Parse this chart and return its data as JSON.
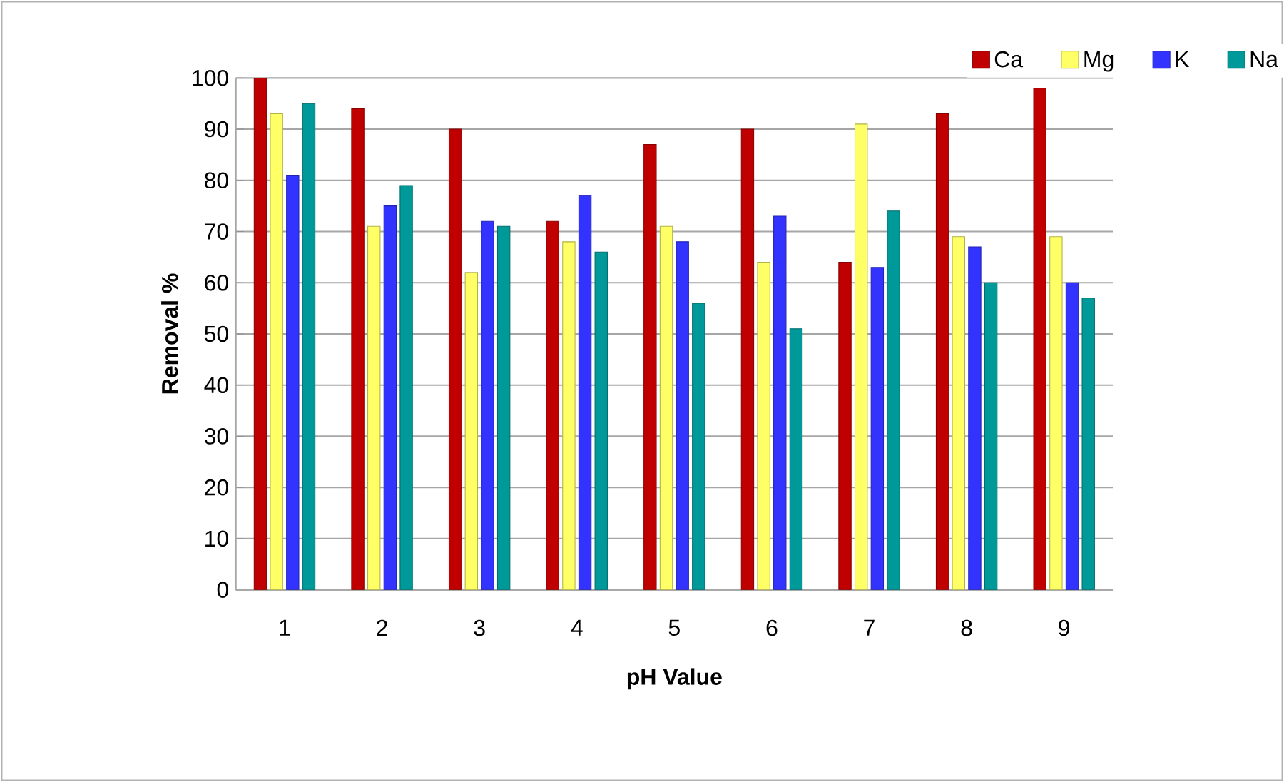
{
  "chart_data": {
    "type": "bar",
    "xlabel": "pH Value",
    "ylabel": "Removal %",
    "categories": [
      "1",
      "2",
      "3",
      "4",
      "5",
      "6",
      "7",
      "8",
      "9"
    ],
    "series": [
      {
        "name": "Ca",
        "color": "#c00000",
        "values": [
          100,
          94,
          90,
          72,
          87,
          90,
          64,
          93,
          98
        ]
      },
      {
        "name": "Mg",
        "color": "#ffff66",
        "values": [
          93,
          71,
          62,
          68,
          71,
          64,
          91,
          69,
          69
        ]
      },
      {
        "name": "K",
        "color": "#3333ff",
        "values": [
          81,
          75,
          72,
          77,
          68,
          73,
          63,
          67,
          60
        ]
      },
      {
        "name": "Na",
        "color": "#009999",
        "values": [
          95,
          79,
          71,
          66,
          56,
          51,
          74,
          60,
          57
        ]
      }
    ],
    "ylim": [
      0,
      100
    ],
    "yticks": [
      0,
      10,
      20,
      30,
      40,
      50,
      60,
      70,
      80,
      90,
      100
    ],
    "grid": "y",
    "legend": "top right"
  }
}
